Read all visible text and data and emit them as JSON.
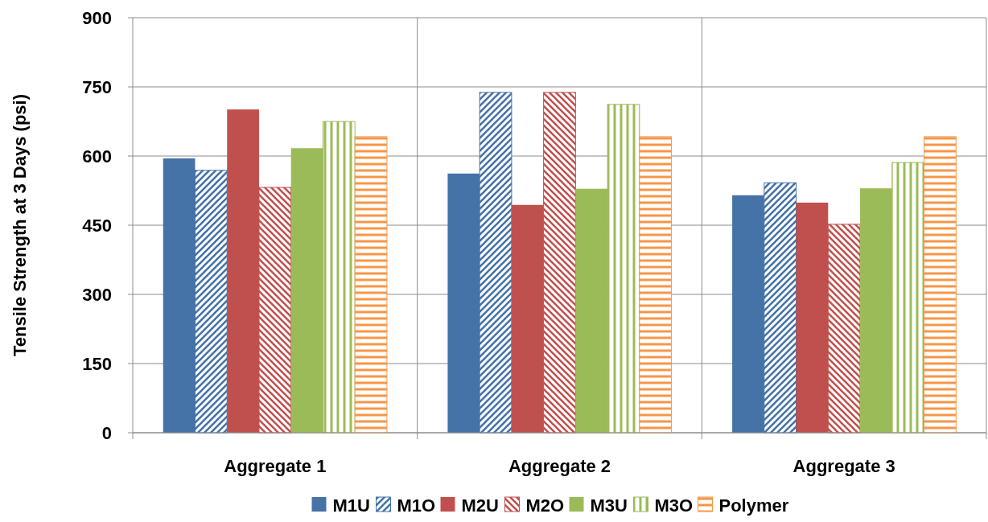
{
  "chart_data": {
    "type": "bar",
    "ylabel": "Tensile Strength at 3 Days (psi)",
    "categories": [
      "Aggregate 1",
      "Aggregate 2",
      "Aggregate 3"
    ],
    "series": [
      {
        "name": "M1U",
        "color": "#4572a7",
        "values": [
          595,
          562,
          515
        ]
      },
      {
        "name": "M1O",
        "color": "#4572a7",
        "values": [
          569,
          738,
          542
        ]
      },
      {
        "name": "M2U",
        "color": "#c0504d",
        "values": [
          701,
          494,
          499
        ]
      },
      {
        "name": "M2O",
        "color": "#c0504d",
        "values": [
          532,
          738,
          452
        ]
      },
      {
        "name": "M3U",
        "color": "#9bbb59",
        "values": [
          617,
          529,
          530
        ]
      },
      {
        "name": "M3O",
        "color": "#9bbb59",
        "values": [
          675,
          712,
          586
        ]
      },
      {
        "name": "Polymer",
        "color": "#f79646",
        "values": [
          642,
          642,
          642
        ]
      }
    ],
    "ylim": [
      0,
      900
    ],
    "yticks": [
      0,
      150,
      300,
      450,
      600,
      750,
      900
    ],
    "grid": true,
    "legend": "bottom"
  }
}
